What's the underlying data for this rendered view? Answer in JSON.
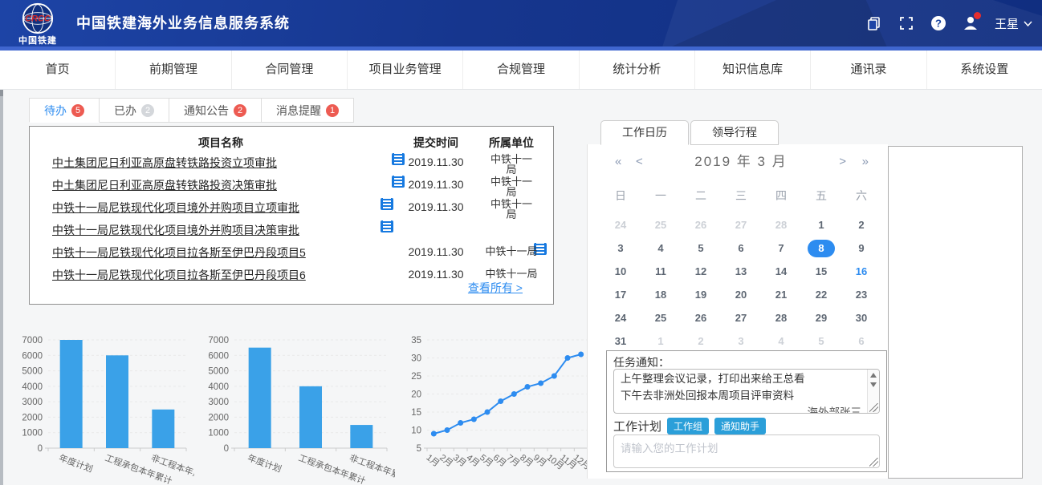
{
  "header": {
    "logo": {
      "crcc": "CRCC",
      "brand": "中国铁建"
    },
    "title": "中国铁建海外业务信息服务系统",
    "user_name": "王星",
    "icons": [
      "copy-icon",
      "fullscreen-icon",
      "help-icon",
      "user-icon",
      "chevron-down-icon"
    ]
  },
  "nav": {
    "items": [
      {
        "name": "home",
        "label": "首页"
      },
      {
        "name": "preliminary",
        "label": "前期管理"
      },
      {
        "name": "contract",
        "label": "合同管理"
      },
      {
        "name": "project-business",
        "label": "项目业务管理"
      },
      {
        "name": "compliance",
        "label": "合规管理"
      },
      {
        "name": "statistics",
        "label": "统计分析"
      },
      {
        "name": "knowledge",
        "label": "知识信息库"
      },
      {
        "name": "contacts",
        "label": "通讯录"
      },
      {
        "name": "system-settings",
        "label": "系统设置"
      }
    ]
  },
  "tabs": [
    {
      "name": "todo",
      "label": "待办",
      "badge": "5",
      "badge_color": "red",
      "active": true
    },
    {
      "name": "done",
      "label": "已办",
      "badge": "2",
      "badge_color": "gray",
      "active": false
    },
    {
      "name": "announcements",
      "label": "通知公告",
      "badge": "2",
      "badge_color": "red",
      "active": false
    },
    {
      "name": "reminders",
      "label": "消息提醒",
      "badge": "1",
      "badge_color": "red",
      "active": false
    }
  ],
  "todo_table": {
    "headers": [
      "项目名称",
      "提交时间",
      "所属单位"
    ],
    "rows": [
      {
        "name": "中土集团尼日利亚高原盘转铁路投资立项审批",
        "date": "2019.11.30",
        "unit": "中铁十一局",
        "unit_wrap": true,
        "icon": "mid",
        "icon_x": 451
      },
      {
        "name": "中土集团尼日利亚高原盘转铁路投资决策审批",
        "date": "2019.11.30",
        "unit": "中铁十一局",
        "unit_wrap": true,
        "icon": "mid",
        "icon_x": 451
      },
      {
        "name": "中铁十一局尼铁现代化项目境外并购项目立项审批",
        "date": "2019.11.30",
        "unit": "中铁十一局",
        "unit_wrap": true,
        "icon": "mid",
        "icon_x": 437
      },
      {
        "name": "中铁十一局尼铁现代化项目境外并购项目决策审批",
        "date": "",
        "unit": "",
        "unit_wrap": false,
        "icon": "mid",
        "icon_x": 437
      },
      {
        "name": "中铁十一局尼铁现代化项目拉各斯至伊巴丹段项目5",
        "date": "2019.11.30",
        "unit": "中铁十一局",
        "unit_wrap": false,
        "icon": "right",
        "icon_x": 628
      },
      {
        "name": "中铁十一局尼铁现代化项目拉各斯至伊巴丹段项目6",
        "date": "2019.11.30",
        "unit": "中铁十一局",
        "unit_wrap": false,
        "icon": "none",
        "icon_x": 0
      }
    ],
    "view_all": "查看所有 >"
  },
  "right_panel": {
    "tabs": [
      {
        "name": "work-calendar",
        "label": "工作日历",
        "active": true
      },
      {
        "name": "leader-schedule",
        "label": "领导行程",
        "active": false
      }
    ],
    "calendar": {
      "title": "2019 年 3 月",
      "prev_year": "«",
      "prev_month": "<",
      "next_month": ">",
      "next_year": "»",
      "weekdays": [
        "日",
        "一",
        "二",
        "三",
        "四",
        "五",
        "六"
      ],
      "days": [
        {
          "d": "24",
          "m": 1
        },
        {
          "d": "25",
          "m": 1
        },
        {
          "d": "26",
          "m": 1
        },
        {
          "d": "27",
          "m": 1
        },
        {
          "d": "28",
          "m": 1
        },
        {
          "d": "1"
        },
        {
          "d": "2"
        },
        {
          "d": "3"
        },
        {
          "d": "4"
        },
        {
          "d": "5"
        },
        {
          "d": "6"
        },
        {
          "d": "7"
        },
        {
          "d": "8",
          "sel": 1
        },
        {
          "d": "9"
        },
        {
          "d": "10"
        },
        {
          "d": "11"
        },
        {
          "d": "12"
        },
        {
          "d": "13"
        },
        {
          "d": "14"
        },
        {
          "d": "15"
        },
        {
          "d": "16",
          "hl": 1
        },
        {
          "d": "17"
        },
        {
          "d": "18"
        },
        {
          "d": "19"
        },
        {
          "d": "20"
        },
        {
          "d": "21"
        },
        {
          "d": "22"
        },
        {
          "d": "23"
        },
        {
          "d": "24"
        },
        {
          "d": "25"
        },
        {
          "d": "26"
        },
        {
          "d": "27"
        },
        {
          "d": "28"
        },
        {
          "d": "29"
        },
        {
          "d": "30"
        },
        {
          "d": "31"
        },
        {
          "d": "1",
          "m": 1
        },
        {
          "d": "2",
          "m": 1
        },
        {
          "d": "3",
          "m": 1
        },
        {
          "d": "4",
          "m": 1
        },
        {
          "d": "5",
          "m": 1
        },
        {
          "d": "6",
          "m": 1
        }
      ],
      "selected_day": "8",
      "highlighted_day": "16"
    },
    "task_notice": {
      "label": "任务通知：",
      "lines": [
        "上午整理会议记录，打印出来给王总看",
        "下午去非洲处回报本周项目评审资料"
      ],
      "signature": "海外部张三"
    },
    "work_plan": {
      "label": "工作计划",
      "buttons": [
        "工作组",
        "通知助手"
      ],
      "placeholder": "请输入您的工作计划"
    }
  },
  "chart_data": [
    {
      "type": "bar",
      "categories": [
        "年度计划",
        "工程承包本年累计",
        "非工程本年累计"
      ],
      "values": [
        7000,
        6000,
        2500
      ],
      "title": "",
      "xlabel": "",
      "ylabel": "",
      "ylim": [
        0,
        7000
      ],
      "ytick_step": 1000,
      "bar_color": "#3aa1e8",
      "grid": true,
      "legend": "none"
    },
    {
      "type": "bar",
      "categories": [
        "年度计划",
        "工程承包本年累计",
        "非工程本年累计"
      ],
      "values": [
        6500,
        4000,
        1500
      ],
      "title": "",
      "xlabel": "",
      "ylabel": "",
      "ylim": [
        0,
        7000
      ],
      "ytick_step": 1000,
      "bar_color": "#3aa1e8",
      "grid": true,
      "legend": "none"
    },
    {
      "type": "line",
      "categories": [
        "1月",
        "2月",
        "3月",
        "4月",
        "5月",
        "6月",
        "7月",
        "8月",
        "9月",
        "10月",
        "11月",
        "12月"
      ],
      "values": [
        9,
        10,
        12,
        13,
        15,
        18,
        20,
        22,
        23,
        25,
        30,
        31
      ],
      "title": "",
      "xlabel": "",
      "ylabel": "",
      "ylim": [
        5,
        35
      ],
      "ytick_step": 5,
      "line_color": "#2d8cf0",
      "marker": "circle",
      "grid": true,
      "legend": "none"
    }
  ]
}
